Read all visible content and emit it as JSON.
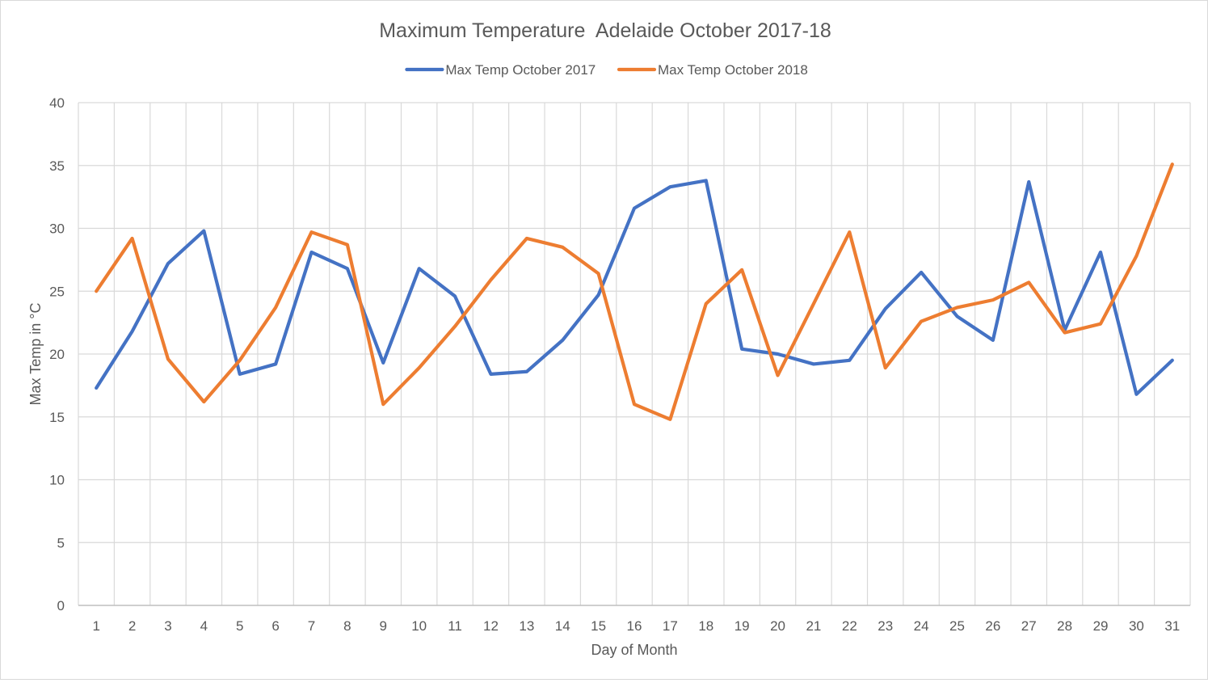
{
  "chart_data": {
    "type": "line",
    "title": "Maximum Temperature  Adelaide October 2017-18",
    "xlabel": "Day of Month",
    "ylabel": "Max Temp in °C",
    "ylim": [
      0,
      40
    ],
    "yticks": [
      0,
      5,
      10,
      15,
      20,
      25,
      30,
      35,
      40
    ],
    "grid": true,
    "legend_position": "top",
    "categories": [
      "1",
      "2",
      "3",
      "4",
      "5",
      "6",
      "7",
      "8",
      "9",
      "10",
      "11",
      "12",
      "13",
      "14",
      "15",
      "16",
      "17",
      "18",
      "19",
      "20",
      "21",
      "22",
      "23",
      "24",
      "25",
      "26",
      "27",
      "28",
      "29",
      "30",
      "31"
    ],
    "series": [
      {
        "name": "Max Temp October 2017",
        "color": "#4472c4",
        "values": [
          17.3,
          21.8,
          27.2,
          29.8,
          18.4,
          19.2,
          28.1,
          26.8,
          19.3,
          26.8,
          24.6,
          18.4,
          18.6,
          21.1,
          24.7,
          31.6,
          33.3,
          33.8,
          20.4,
          20.0,
          19.2,
          19.5,
          23.6,
          26.5,
          23.0,
          21.1,
          33.7,
          21.9,
          28.1,
          16.8,
          19.5
        ]
      },
      {
        "name": "Max Temp October 2018",
        "color": "#ed7d31",
        "values": [
          25.0,
          29.2,
          19.6,
          16.2,
          19.5,
          23.7,
          29.7,
          28.7,
          16.0,
          18.9,
          22.2,
          25.9,
          29.2,
          28.5,
          26.4,
          16.0,
          14.8,
          24.0,
          26.7,
          18.3,
          24.0,
          29.7,
          18.9,
          22.6,
          23.7,
          24.3,
          25.7,
          21.7,
          22.4,
          27.8,
          35.1
        ]
      }
    ]
  }
}
